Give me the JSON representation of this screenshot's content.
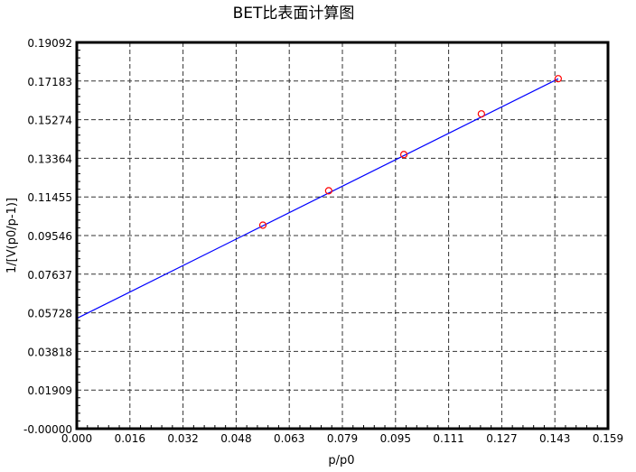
{
  "chart_data": {
    "type": "scatter",
    "title": "BET比表面计算图",
    "xlabel": "p/p0",
    "ylabel": "1/[V(p0/p-1)]",
    "xlim": [
      0,
      0.159
    ],
    "ylim": [
      0,
      0.19092
    ],
    "x_ticks": [
      "0.000",
      "0.016",
      "0.032",
      "0.048",
      "0.063",
      "0.079",
      "0.095",
      "0.111",
      "0.127",
      "0.143",
      "0.159"
    ],
    "y_ticks": [
      "-0.00000",
      "0.01909",
      "0.03818",
      "0.05728",
      "0.07637",
      "0.09546",
      "0.11455",
      "0.13364",
      "0.15274",
      "0.17183",
      "0.19092"
    ],
    "grid": true,
    "points": [
      {
        "x": 0.0557,
        "y": 0.1006
      },
      {
        "x": 0.0754,
        "y": 0.1176
      },
      {
        "x": 0.0979,
        "y": 0.1355
      },
      {
        "x": 0.1211,
        "y": 0.1556
      },
      {
        "x": 0.1441,
        "y": 0.173
      }
    ],
    "fit_line": {
      "intercept": 0.0545,
      "slope": 0.822,
      "x_end": 0.1441
    },
    "colors": {
      "points": "#ff0000",
      "line": "#0000ff",
      "grid": "#000000"
    }
  }
}
